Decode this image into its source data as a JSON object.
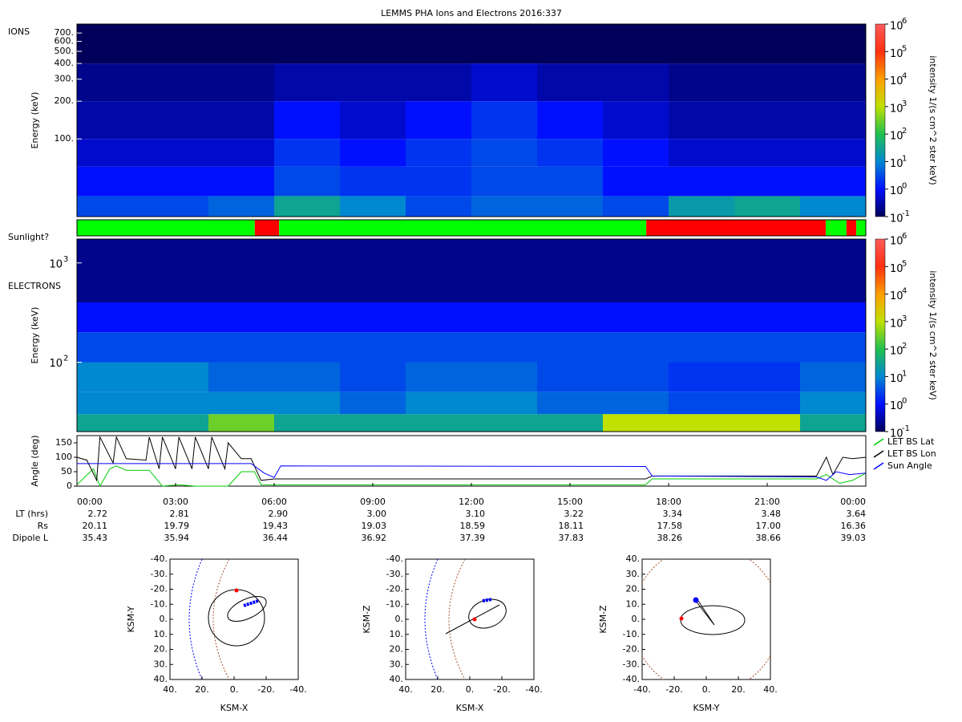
{
  "title": "LEMMS PHA Ions and Electrons  2016:337",
  "time_axis": {
    "xlim": [
      0,
      24
    ],
    "xticks": [
      {
        "value": 0,
        "label": "00:00"
      },
      {
        "value": 3,
        "label": "03:00"
      },
      {
        "value": 6,
        "label": "06:00"
      },
      {
        "value": 9,
        "label": "09:00"
      },
      {
        "value": 12,
        "label": "12:00"
      },
      {
        "value": 15,
        "label": "15:00"
      },
      {
        "value": 18,
        "label": "18:00"
      },
      {
        "value": 21,
        "label": "21:00"
      },
      {
        "value": 24,
        "label": "00:00"
      }
    ]
  },
  "colorbar": {
    "label": "intensity 1/(s cm^2 ster keV)",
    "lim": [
      0.1,
      1000000
    ],
    "colors": [
      "#00005a",
      "#0010ff",
      "#0088d0",
      "#20c050",
      "#c0e000",
      "#ffa000",
      "#ff3010",
      "#ff5a5a"
    ],
    "ticks": [
      {
        "value": 0.1,
        "label": "10",
        "exponent": "-1"
      },
      {
        "value": 1,
        "label": "10",
        "exponent": "0"
      },
      {
        "value": 10,
        "label": "10",
        "exponent": "1"
      },
      {
        "value": 100,
        "label": "10",
        "exponent": "2"
      },
      {
        "value": 1000,
        "label": "10",
        "exponent": "3"
      },
      {
        "value": 10000,
        "label": "10",
        "exponent": "4"
      },
      {
        "value": 100000,
        "label": "10",
        "exponent": "5"
      },
      {
        "value": 1000000,
        "label": "10",
        "exponent": "6"
      }
    ]
  },
  "ions": {
    "label": "IONS",
    "ylabel": "Energy (keV)",
    "ylim": [
      24,
      825
    ],
    "yticks": [
      {
        "value": 100,
        "label": "100."
      },
      {
        "value": 200,
        "label": "200."
      },
      {
        "value": 300,
        "label": "300."
      },
      {
        "value": 400,
        "label": "400."
      },
      {
        "value": 500,
        "label": "500."
      },
      {
        "value": 600,
        "label": "600."
      },
      {
        "value": 700,
        "label": "700."
      }
    ],
    "time_bins": [
      0,
      2,
      4,
      6,
      8,
      10,
      12,
      14,
      16,
      18,
      20,
      22,
      24
    ],
    "energy_bins": [
      24,
      35,
      60,
      100,
      200,
      400,
      825
    ],
    "intensity": [
      [
        3,
        3,
        5,
        30,
        10,
        3,
        5,
        5,
        3,
        20,
        30,
        10
      ],
      [
        1,
        1,
        1,
        3,
        2,
        2,
        3,
        3,
        1,
        1,
        1,
        1
      ],
      [
        0.5,
        0.5,
        0.5,
        2,
        1,
        2,
        3,
        2,
        1,
        0.5,
        0.5,
        0.5
      ],
      [
        0.3,
        0.3,
        0.3,
        1,
        0.5,
        1,
        2,
        1,
        0.5,
        0.3,
        0.3,
        0.3
      ],
      [
        0.2,
        0.2,
        0.2,
        0.3,
        0.3,
        0.3,
        0.5,
        0.3,
        0.3,
        0.2,
        0.2,
        0.2
      ],
      [
        0.1,
        0.1,
        0.1,
        0.1,
        0.1,
        0.1,
        0.1,
        0.1,
        0.1,
        0.1,
        0.1,
        0.1
      ]
    ]
  },
  "sunlight": {
    "label": "Sunlight?",
    "segments": [
      {
        "start": 0,
        "end": 5.41,
        "color": "#00ff00"
      },
      {
        "start": 5.41,
        "end": 6.15,
        "color": "#ff0000"
      },
      {
        "start": 6.15,
        "end": 17.32,
        "color": "#00ff00"
      },
      {
        "start": 17.32,
        "end": 22.78,
        "color": "#ff0000"
      },
      {
        "start": 22.78,
        "end": 23.41,
        "color": "#00ff00"
      },
      {
        "start": 23.41,
        "end": 23.71,
        "color": "#ff0000"
      },
      {
        "start": 23.71,
        "end": 24,
        "color": "#00ff00"
      }
    ]
  },
  "electrons": {
    "label": "ELECTRONS",
    "ylabel": "Energy (keV)",
    "ylim": [
      20,
      1740
    ],
    "yticks": [
      {
        "value": 100,
        "label": "10",
        "exponent": "2"
      },
      {
        "value": 1000,
        "label": "10",
        "exponent": "3"
      }
    ],
    "time_bins": [
      0,
      2,
      4,
      6,
      8,
      10,
      12,
      14,
      16,
      18,
      20,
      22,
      24
    ],
    "energy_bins": [
      20,
      30,
      50,
      100,
      200,
      400,
      1740
    ],
    "intensity": [
      [
        30,
        30,
        300,
        30,
        30,
        30,
        30,
        30,
        1000,
        1000,
        1000,
        30
      ],
      [
        10,
        10,
        10,
        10,
        5,
        10,
        10,
        5,
        5,
        3,
        3,
        10
      ],
      [
        10,
        10,
        5,
        5,
        3,
        5,
        5,
        3,
        3,
        2,
        2,
        5
      ],
      [
        3,
        3,
        3,
        3,
        3,
        3,
        3,
        3,
        3,
        3,
        3,
        3
      ],
      [
        1,
        1,
        1,
        1,
        1,
        1,
        1,
        1,
        1,
        1,
        1,
        1
      ],
      [
        0.2,
        0.2,
        0.2,
        0.2,
        0.2,
        0.2,
        0.2,
        0.2,
        0.2,
        0.2,
        0.2,
        0.2
      ]
    ]
  },
  "angles": {
    "ylabel": "Angle (deg)",
    "ylim": [
      0,
      175
    ],
    "yticks": [
      0,
      50,
      100,
      150
    ],
    "series": [
      {
        "name": "LET BS Lat",
        "color": "#00cc00",
        "x": [
          0,
          0.5,
          0.7,
          1.0,
          1.2,
          1.5,
          2.2,
          2.6,
          3.1,
          3.6,
          4.1,
          4.6,
          5.0,
          5.4,
          5.6,
          6.0,
          17.3,
          17.5,
          22.5,
          22.8,
          23.2,
          23.6,
          24
        ],
        "values": [
          5,
          60,
          0,
          60,
          70,
          55,
          55,
          0,
          5,
          0,
          0,
          0,
          50,
          50,
          5,
          5,
          5,
          25,
          25,
          40,
          10,
          20,
          45
        ]
      },
      {
        "name": "LET BS Lon",
        "color": "#000000",
        "x": [
          0,
          0.3,
          0.6,
          0.7,
          1.1,
          1.2,
          1.5,
          2.1,
          2.2,
          2.5,
          2.6,
          3.0,
          3.1,
          3.5,
          3.6,
          4.0,
          4.1,
          4.5,
          4.6,
          5.0,
          5.3,
          5.6,
          6.0,
          17.3,
          17.5,
          22.5,
          22.8,
          23.0,
          23.3,
          23.6,
          24
        ],
        "values": [
          100,
          90,
          20,
          170,
          80,
          170,
          95,
          90,
          170,
          60,
          170,
          60,
          170,
          60,
          170,
          60,
          170,
          60,
          150,
          95,
          95,
          20,
          25,
          25,
          35,
          35,
          100,
          40,
          100,
          95,
          100
        ]
      },
      {
        "name": "Sun Angle",
        "color": "#0000ff",
        "x": [
          0,
          5.3,
          5.7,
          6.0,
          6.2,
          17.3,
          17.5,
          22.5,
          22.8,
          23.1,
          23.5,
          24
        ],
        "values": [
          78,
          78,
          45,
          30,
          70,
          68,
          35,
          32,
          20,
          50,
          40,
          45
        ]
      }
    ]
  },
  "ephemeris": {
    "rows": [
      {
        "label": "LT (hrs)",
        "values": [
          "2.72",
          "2.81",
          "2.90",
          "3.00",
          "3.10",
          "3.22",
          "3.34",
          "3.48",
          "3.64"
        ]
      },
      {
        "label": "Rs",
        "values": [
          "20.11",
          "19.79",
          "19.43",
          "19.03",
          "18.59",
          "18.11",
          "17.58",
          "17.00",
          "16.36"
        ]
      },
      {
        "label": "Dipole L",
        "values": [
          "35.43",
          "35.94",
          "36.44",
          "36.92",
          "37.39",
          "37.83",
          "38.26",
          "38.66",
          "39.03"
        ]
      }
    ]
  },
  "orbits": [
    {
      "xlabel": "KSM-X",
      "ylabel": "KSM-Y",
      "xlim": [
        40,
        -40
      ],
      "ylim": [
        40,
        -40
      ],
      "xticks": [
        {
          "value": 40,
          "label": "40."
        },
        {
          "value": 20,
          "label": "20."
        },
        {
          "value": 0,
          "label": "0."
        },
        {
          "value": -20,
          "label": "-20."
        },
        {
          "value": -40,
          "label": "-40."
        }
      ],
      "yticks": [
        {
          "value": -40,
          "label": "-40."
        },
        {
          "value": -30,
          "label": "-30."
        },
        {
          "value": -20,
          "label": "-20."
        },
        {
          "value": -10,
          "label": "-10."
        },
        {
          "value": 0,
          "label": "0."
        },
        {
          "value": 10,
          "label": "10."
        },
        {
          "value": 20,
          "label": "20."
        },
        {
          "value": 30,
          "label": "30."
        },
        {
          "value": 40,
          "label": "40."
        }
      ]
    },
    {
      "xlabel": "KSM-X",
      "ylabel": "KSM-Z",
      "xlim": [
        40,
        -40
      ],
      "ylim": [
        40,
        -40
      ],
      "xticks": [
        {
          "value": 40,
          "label": "40."
        },
        {
          "value": 20,
          "label": "20."
        },
        {
          "value": 0,
          "label": "0."
        },
        {
          "value": -20,
          "label": "-20."
        },
        {
          "value": -40,
          "label": "-40."
        }
      ],
      "yticks": [
        {
          "value": -40,
          "label": "-40."
        },
        {
          "value": -30,
          "label": "-30."
        },
        {
          "value": -20,
          "label": "-20."
        },
        {
          "value": -10,
          "label": "-10."
        },
        {
          "value": 0,
          "label": "0."
        },
        {
          "value": 10,
          "label": "10."
        },
        {
          "value": 20,
          "label": "20."
        },
        {
          "value": 30,
          "label": "30."
        },
        {
          "value": 40,
          "label": "40."
        }
      ]
    },
    {
      "xlabel": "KSM-Y",
      "ylabel": "KSM-Z",
      "xlim": [
        -40,
        40
      ],
      "ylim": [
        -40,
        40
      ],
      "xticks": [
        {
          "value": -40,
          "label": "-40."
        },
        {
          "value": -20,
          "label": "-20."
        },
        {
          "value": 0,
          "label": "0."
        },
        {
          "value": 20,
          "label": "20."
        },
        {
          "value": 40,
          "label": "40."
        }
      ],
      "yticks": [
        {
          "value": 40,
          "label": "40."
        },
        {
          "value": 30,
          "label": "30."
        },
        {
          "value": 20,
          "label": "20."
        },
        {
          "value": 10,
          "label": "10."
        },
        {
          "value": 0,
          "label": "0."
        },
        {
          "value": -10,
          "label": "-10."
        },
        {
          "value": -20,
          "label": "-20."
        },
        {
          "value": -30,
          "label": "-30."
        },
        {
          "value": -40,
          "label": "-40."
        }
      ]
    }
  ]
}
